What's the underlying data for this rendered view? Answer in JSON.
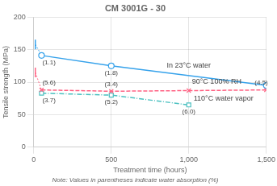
{
  "chart_data": {
    "type": "line",
    "title": "CM 3001G - 30",
    "subtitle": "Note: Values in parentheses indicate water absorption (%)",
    "xlabel": "Treatment time (hours)",
    "ylabel": "Tensile strength (MPa)",
    "xlim": [
      0,
      1500
    ],
    "ylim": [
      0,
      200
    ],
    "xticks": [
      0,
      500,
      {
        "value": 1000,
        "label": "1,000"
      },
      {
        "value": 1500,
        "label": "1,500"
      }
    ],
    "yticks": [
      0,
      50,
      100,
      150,
      200
    ],
    "grid": true,
    "series": [
      {
        "name": "In 23°C water",
        "x": [
          50,
          500,
          1500
        ],
        "values": [
          141,
          125,
          95
        ],
        "point_labels": [
          "(1.1)",
          "(1.8)",
          null
        ],
        "initial_x": 10,
        "initial_value": 158,
        "marker": "circle",
        "line_style": "solid"
      },
      {
        "name": "90°C 100% RH",
        "x": [
          50,
          500,
          1000,
          1500
        ],
        "values": [
          88,
          86,
          87,
          88
        ],
        "point_labels": [
          "(5.6)",
          "(3.4)",
          null,
          "(4.5)"
        ],
        "initial_x": 10,
        "initial_value": 115,
        "marker": "cross",
        "line_style": "dashed"
      },
      {
        "name": "110°C water vapor",
        "x": [
          50,
          500,
          1000
        ],
        "values": [
          83,
          80,
          65
        ],
        "point_labels": [
          "(3.7)",
          "(5.2)",
          "(6.0)"
        ],
        "marker": "square",
        "line_style": "dashdot"
      }
    ]
  }
}
